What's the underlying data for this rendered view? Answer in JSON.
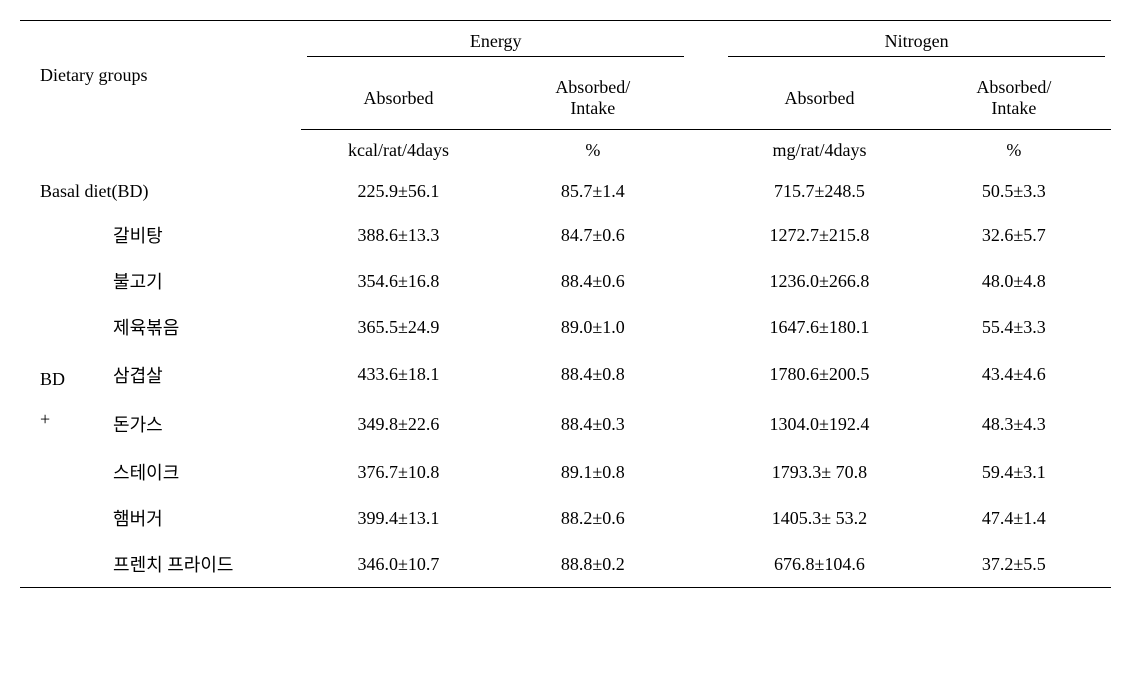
{
  "table": {
    "header": {
      "dietary_groups": "Dietary groups",
      "energy": "Energy",
      "nitrogen": "Nitrogen",
      "absorbed": "Absorbed",
      "absorbed_intake_1": "Absorbed/",
      "absorbed_intake_2": "Intake",
      "units_energy_abs": "kcal/rat/4days",
      "units_energy_ratio": "%",
      "units_nitrogen_abs": "mg/rat/4days",
      "units_nitrogen_ratio": "%"
    },
    "basal": {
      "label": "Basal  diet(BD)",
      "energy_abs": "225.9±56.1",
      "energy_ratio": "85.7±1.4",
      "nitrogen_abs": "715.7±248.5",
      "nitrogen_ratio": "50.5±3.3"
    },
    "bd_group_1": "BD",
    "bd_group_2": "+",
    "rows": [
      {
        "name": "갈비탕",
        "energy_abs": "388.6±13.3",
        "energy_ratio": "84.7±0.6",
        "nitrogen_abs": "1272.7±215.8",
        "nitrogen_ratio": "32.6±5.7"
      },
      {
        "name": "불고기",
        "energy_abs": "354.6±16.8",
        "energy_ratio": "88.4±0.6",
        "nitrogen_abs": "1236.0±266.8",
        "nitrogen_ratio": "48.0±4.8"
      },
      {
        "name": "제육볶음",
        "energy_abs": "365.5±24.9",
        "energy_ratio": "89.0±1.0",
        "nitrogen_abs": "1647.6±180.1",
        "nitrogen_ratio": "55.4±3.3"
      },
      {
        "name": "삼겹살",
        "energy_abs": "433.6±18.1",
        "energy_ratio": "88.4±0.8",
        "nitrogen_abs": "1780.6±200.5",
        "nitrogen_ratio": "43.4±4.6"
      },
      {
        "name": "돈가스",
        "energy_abs": "349.8±22.6",
        "energy_ratio": "88.4±0.3",
        "nitrogen_abs": "1304.0±192.4",
        "nitrogen_ratio": "48.3±4.3"
      },
      {
        "name": "스테이크",
        "energy_abs": "376.7±10.8",
        "energy_ratio": "89.1±0.8",
        "nitrogen_abs": "1793.3± 70.8",
        "nitrogen_ratio": "59.4±3.1"
      },
      {
        "name": "햄버거",
        "energy_abs": "399.4±13.1",
        "energy_ratio": "88.2±0.6",
        "nitrogen_abs": "1405.3± 53.2",
        "nitrogen_ratio": "47.4±1.4"
      },
      {
        "name": "프렌치 프라이드",
        "energy_abs": "346.0±10.7",
        "energy_ratio": "88.8±0.2",
        "nitrogen_abs": "676.8±104.6",
        "nitrogen_ratio": "37.2±5.5"
      }
    ]
  }
}
